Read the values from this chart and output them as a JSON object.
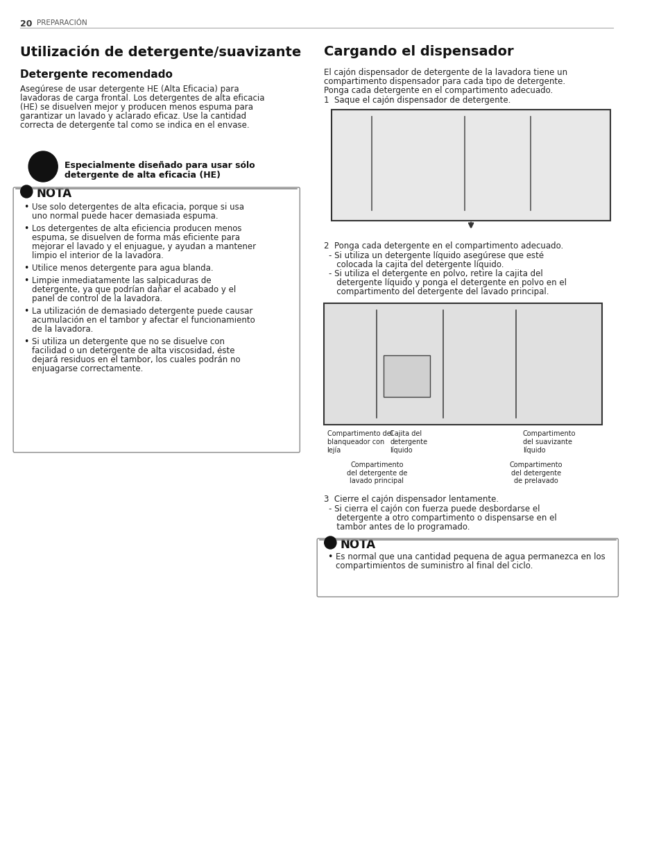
{
  "page_num": "20",
  "page_header": "PREPARACIÓN",
  "bg_color": "#ffffff",
  "left_title": "Utilización de detergente/suavizante",
  "left_subtitle": "Detergente recomendado",
  "left_body": "Asegúrese de usar detergente HE (Alta Eficacia) para\nlavadoras de carga frontal. Los detergentes de alta eficacia\n(HE) se disuelven mejor y producen menos espuma para\ngarantizar un lavado y aclarado eficaz. Use la cantidad\ncorrecta de detergente tal como se indica en el envase.",
  "he_label": "Especialmente diseñado para usar sólo\ndetergente de alta eficacia (HE)",
  "nota_title": "NOTA",
  "nota_bullets": [
    "Use solo detergentes de alta eficacia, porque si usa uno normal puede hacer demasiada espuma.",
    "Los detergentes de alta eficiencia producen menos espuma, se disuelven de forma más eficiente para mejorar el lavado y el enjuague, y ayudan a mantener limpio el interior de la lavadora.",
    "Utilice menos detergente para agua blanda.",
    "Limpie inmediatamente las salpicaduras de detergente, ya que podrían dañar el acabado y el panel de control de la lavadora.",
    "La utilización de demasiado detergente puede causar acumulación en el tambor y afectar el funcionamiento de la lavadora.",
    "Si utiliza un detergente que no se disuelve con facilidad o un detergente de alta viscosidad, éste dejará residuos en el tambor, los cuales podrán no enjuagarse correctamente."
  ],
  "right_title": "Cargando el dispensador",
  "right_intro": "El cajón dispensador de detergente de la lavadora tiene un\ncompartimento dispensador para cada tipo de detergente.\nPonga cada detergente en el compartimento adecuado.",
  "step1": "1  Saque el cajón dispensador de detergente.",
  "step2": "2  Ponga cada detergente en el compartimento adecuado.",
  "step2_sub1": "- Si utiliza un detergente líquido asegúrese que esté\n   colocada la cajita del detergente líquido.",
  "step2_sub2": "- Si utiliza el detergente en polvo, retire la cajita del\n   detergente líquido y ponga el detergente en polvo en el\n   compartimento del detergente del lavado principal.",
  "step3": "3  Cierre el cajón dispensador lentamente.",
  "step3_sub": "- Si cierra el cajón con fuerza puede desbordarse el\n   detergente a otro compartimento o dispensarse en el\n   tambor antes de lo programado.",
  "nota2_title": "NOTA",
  "nota2_bullets": [
    "Es normal que una cantidad pequena de agua permanezca en los compartimientos de suministro al final del ciclo."
  ],
  "disp_labels": {
    "blanqueador": "Compartimento del\nblanqueador con\nlejía",
    "cajita": "Cajita del\ndetergente\nlíquido",
    "suavizante": "Compartimento\ndel suavizante\nlíquido",
    "principal": "Compartimento\ndel detergente de\nlavado principal",
    "prelavado": "Compartimento\ndel detergente\nde prelavado"
  }
}
